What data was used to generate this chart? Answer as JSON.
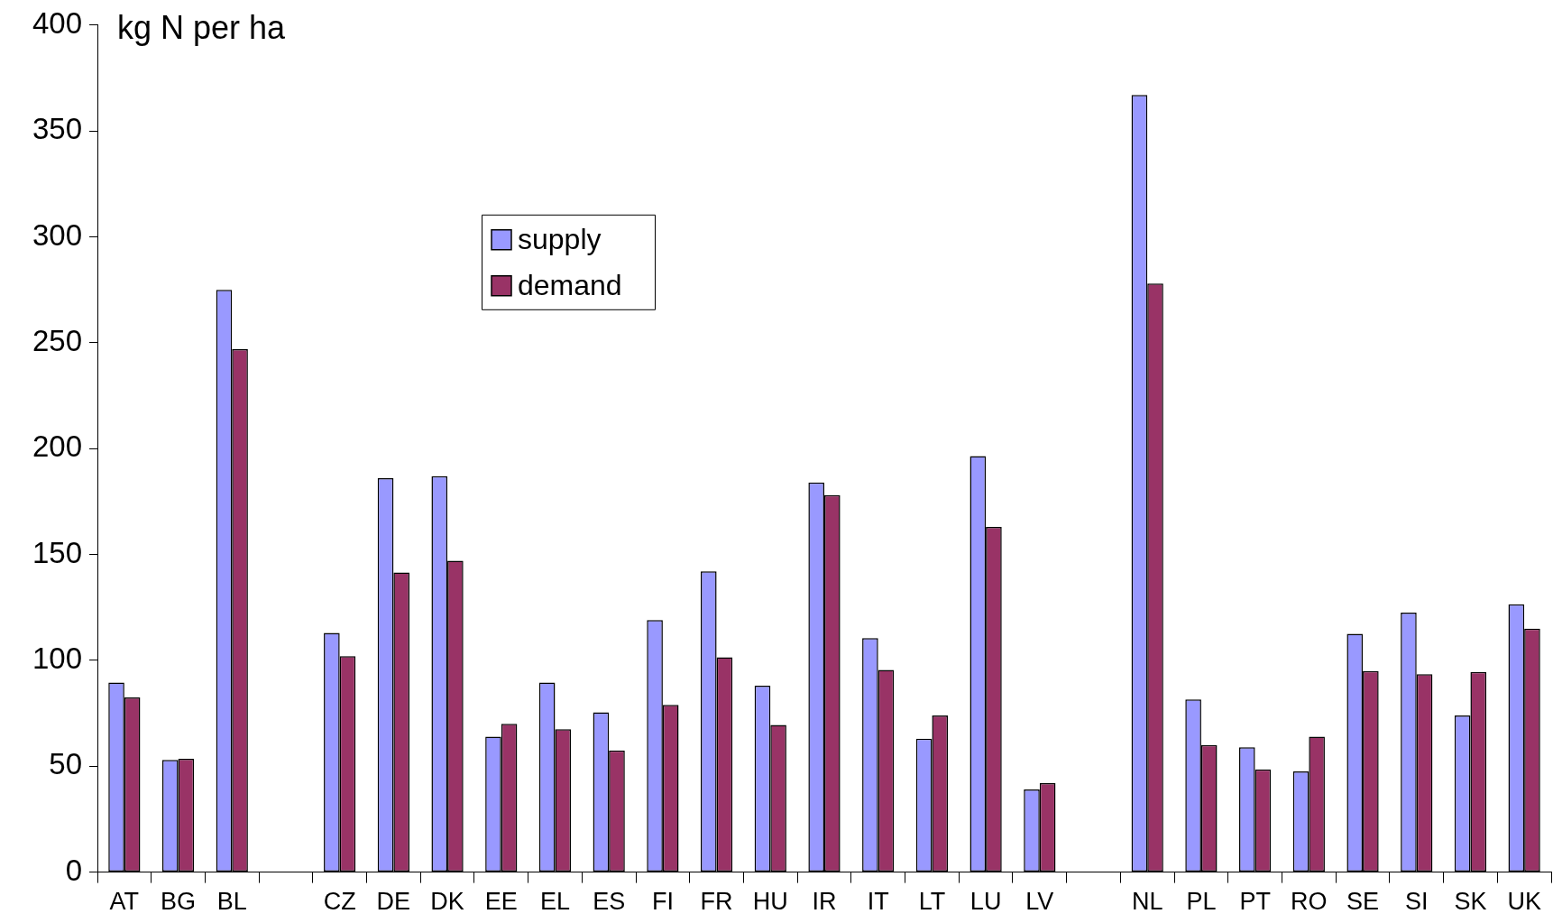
{
  "chart_data": {
    "type": "bar",
    "ylabel": "kg N per ha",
    "categories": [
      "AT",
      "BG",
      "BL",
      null,
      "CZ",
      "DE",
      "DK",
      "EE",
      "EL",
      "ES",
      "FI",
      "FR",
      "HU",
      "IR",
      "IT",
      "LT",
      "LU",
      "LV",
      null,
      "NL",
      "PL",
      "PT",
      "RO",
      "SE",
      "SI",
      "SK",
      "UK"
    ],
    "series": [
      {
        "name": "supply",
        "color": "#9999ff",
        "values": [
          89.5,
          53,
          275,
          null,
          113,
          186,
          187,
          64,
          89.5,
          75.5,
          119,
          142,
          88,
          184,
          110.5,
          63,
          196.5,
          39,
          null,
          367,
          81.5,
          59,
          47.5,
          112.5,
          122.5,
          74,
          126.5
        ]
      },
      {
        "name": "demand",
        "color": "#993366",
        "values": [
          82.5,
          53.5,
          247,
          null,
          102,
          141.5,
          147,
          70,
          67.5,
          57.5,
          79,
          101.5,
          69.5,
          178,
          95.5,
          74,
          163,
          42,
          null,
          278,
          60,
          48.5,
          64,
          95,
          93.5,
          94.5,
          115
        ]
      }
    ],
    "ylim": [
      0,
      400
    ],
    "yticks": [
      0,
      50,
      100,
      150,
      200,
      250,
      300,
      350,
      400
    ],
    "grid": false,
    "legend": "top"
  }
}
